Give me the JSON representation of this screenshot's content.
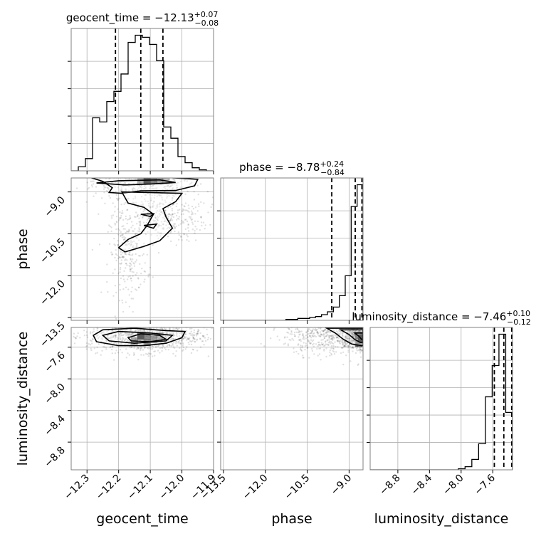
{
  "chart_data": {
    "type": "corner",
    "parameters": [
      "geocent_time",
      "phase",
      "luminosity_distance"
    ],
    "titles": [
      {
        "parameter": "geocent_time",
        "prefix": "geocent_time = ",
        "median": "−12.13",
        "plus": "+0.07",
        "minus": "−0.08"
      },
      {
        "parameter": "phase",
        "prefix": "phase = ",
        "median": "−8.78",
        "plus": "+0.24",
        "minus": "−0.84"
      },
      {
        "parameter": "luminosity_distance",
        "prefix": "luminosity_distance = ",
        "median": "−7.46",
        "plus": "+0.10",
        "minus": "−0.12"
      }
    ],
    "axis_labels": {
      "x": [
        "geocent_time",
        "phase",
        "luminosity_distance"
      ],
      "y": [
        "phase",
        "luminosity_distance"
      ]
    },
    "axis_ranges": {
      "geocent_time": [
        -12.35,
        -11.9
      ],
      "phase": [
        -13.6,
        -8.5
      ],
      "luminosity_distance": [
        -9.15,
        -7.35
      ]
    },
    "ticks": {
      "geocent_time": {
        "values": [
          -12.3,
          -12.2,
          -12.1,
          -12.0,
          -11.9
        ],
        "labels": [
          "−12.3",
          "−12.2",
          "−12.1",
          "−12.0",
          "−11.9"
        ]
      },
      "phase": {
        "values": [
          -13.5,
          -12.0,
          -10.5,
          -9.0
        ],
        "labels": [
          "−13.5",
          "−12.0",
          "−10.5",
          "−9.0"
        ]
      },
      "luminosity_distance": {
        "values": [
          -8.8,
          -8.4,
          -8.0,
          -7.6
        ],
        "labels": [
          "−8.8",
          "−8.4",
          "−8.0",
          "−7.6"
        ]
      }
    },
    "quantiles": {
      "geocent_time": [
        -12.21,
        -12.13,
        -12.06
      ],
      "phase": [
        -9.62,
        -8.78,
        -8.54
      ],
      "luminosity_distance": [
        -7.58,
        -7.46,
        -7.36
      ]
    },
    "histograms": {
      "geocent_time": {
        "edges_start": -12.35,
        "bin_width": 0.0225,
        "counts": [
          0,
          4,
          12,
          52,
          48,
          68,
          78,
          95,
          126,
          133,
          131,
          124,
          108,
          43,
          32,
          14,
          8,
          3,
          1,
          0
        ]
      },
      "phase": {
        "edges_start": -13.6,
        "bin_width": 0.2125,
        "counts": [
          0,
          0,
          0,
          0,
          0,
          0,
          0,
          0,
          0,
          0,
          0,
          1,
          1,
          2,
          2,
          3,
          4,
          6,
          9,
          14,
          26,
          47,
          120,
          143
        ]
      },
      "luminosity_distance": {
        "edges_start": -9.15,
        "bin_width": 0.0857,
        "counts": [
          0,
          0,
          0,
          0,
          0,
          0,
          0,
          0,
          0,
          0,
          0,
          0,
          0,
          1,
          3,
          10,
          25,
          70,
          100,
          130,
          55
        ]
      }
    },
    "scatter_clouds": [
      {
        "x": "geocent_time",
        "y": "phase",
        "center": [
          -12.12,
          -8.6
        ],
        "spread": [
          0.08,
          0.3
        ],
        "count": 520
      },
      {
        "x": "geocent_time",
        "y": "phase",
        "center": [
          -12.06,
          -9.9
        ],
        "spread": [
          0.07,
          0.45
        ],
        "count": 360
      },
      {
        "x": "geocent_time",
        "y": "phase",
        "center": [
          -12.17,
          -11.2
        ],
        "spread": [
          0.03,
          0.8
        ],
        "count": 260
      },
      {
        "x": "geocent_time",
        "y": "luminosity_distance",
        "center": [
          -12.12,
          -7.46
        ],
        "spread": [
          0.09,
          0.1
        ],
        "count": 1100
      },
      {
        "x": "phase",
        "y": "luminosity_distance",
        "center": [
          -9.3,
          -7.45
        ],
        "spread": [
          1.0,
          0.12
        ],
        "count": 800
      },
      {
        "x": "phase",
        "y": "luminosity_distance",
        "center": [
          -8.65,
          -7.45
        ],
        "spread": [
          0.25,
          0.08
        ],
        "count": 500
      }
    ],
    "density_cores": [
      {
        "x": "geocent_time",
        "y": "phase",
        "cells": [
          [
            -12.11,
            -8.6,
            1.0
          ],
          [
            -12.09,
            -8.6,
            0.75
          ],
          [
            -12.07,
            -8.6,
            0.55
          ],
          [
            -12.05,
            -8.6,
            0.35
          ],
          [
            -12.13,
            -8.6,
            0.4
          ]
        ]
      },
      {
        "x": "geocent_time",
        "y": "luminosity_distance",
        "cells": [
          [
            -12.13,
            -7.46,
            1.0
          ],
          [
            -12.11,
            -7.46,
            0.65
          ],
          [
            -12.09,
            -7.5,
            0.55
          ],
          [
            -12.11,
            -7.54,
            0.6
          ],
          [
            -12.15,
            -7.52,
            0.5
          ],
          [
            -12.07,
            -7.46,
            0.4
          ]
        ]
      },
      {
        "x": "phase",
        "y": "luminosity_distance",
        "cells": [
          [
            -8.55,
            -7.49,
            1.0
          ],
          [
            -8.65,
            -7.45,
            0.6
          ],
          [
            -8.65,
            -7.55,
            0.5
          ]
        ]
      }
    ],
    "contours": [
      {
        "x": "geocent_time",
        "y": "phase",
        "levels": [
          [
            [
              -12.3,
              -8.45
            ],
            [
              -12.25,
              -8.62
            ],
            [
              -12.22,
              -8.85
            ],
            [
              -12.23,
              -9.02
            ],
            [
              -12.19,
              -9.05
            ],
            [
              -12.13,
              -8.96
            ],
            [
              -12.02,
              -8.95
            ],
            [
              -11.96,
              -8.78
            ],
            [
              -11.95,
              -8.55
            ],
            [
              -12.05,
              -8.48
            ],
            [
              -12.3,
              -8.45
            ]
          ],
          [
            [
              -12.27,
              -8.68
            ],
            [
              -12.18,
              -8.75
            ],
            [
              -12.1,
              -8.72
            ],
            [
              -12.02,
              -8.66
            ],
            [
              -12.07,
              -8.57
            ],
            [
              -12.2,
              -8.6
            ],
            [
              -12.27,
              -8.68
            ]
          ]
        ]
      },
      {
        "x": "geocent_time",
        "y": "phase",
        "levels": [
          [
            [
              -12.19,
              -9.0
            ],
            [
              -12.17,
              -9.4
            ],
            [
              -12.12,
              -9.55
            ],
            [
              -12.09,
              -9.8
            ],
            [
              -12.11,
              -10.2
            ],
            [
              -12.13,
              -10.5
            ],
            [
              -12.17,
              -10.7
            ],
            [
              -12.2,
              -11.0
            ],
            [
              -12.18,
              -11.15
            ],
            [
              -12.12,
              -10.95
            ],
            [
              -12.07,
              -10.75
            ],
            [
              -12.03,
              -10.3
            ],
            [
              -12.05,
              -9.9
            ],
            [
              -12.06,
              -9.6
            ],
            [
              -12.02,
              -9.35
            ],
            [
              -12.0,
              -9.05
            ],
            [
              -12.19,
              -9.0
            ]
          ],
          [
            [
              -12.13,
              -9.8
            ],
            [
              -12.1,
              -9.88
            ],
            [
              -12.09,
              -9.78
            ],
            [
              -12.13,
              -9.8
            ]
          ],
          [
            [
              -12.12,
              -10.2
            ],
            [
              -12.09,
              -10.3
            ],
            [
              -12.08,
              -10.15
            ],
            [
              -12.12,
              -10.2
            ]
          ]
        ]
      },
      {
        "x": "geocent_time",
        "y": "luminosity_distance",
        "levels": [
          [
            [
              -12.28,
              -7.45
            ],
            [
              -12.25,
              -7.38
            ],
            [
              -12.15,
              -7.36
            ],
            [
              -12.05,
              -7.39
            ],
            [
              -11.99,
              -7.4
            ],
            [
              -12.0,
              -7.48
            ],
            [
              -12.05,
              -7.55
            ],
            [
              -12.12,
              -7.58
            ],
            [
              -12.2,
              -7.58
            ],
            [
              -12.27,
              -7.53
            ],
            [
              -12.28,
              -7.45
            ]
          ],
          [
            [
              -12.25,
              -7.45
            ],
            [
              -12.2,
              -7.4
            ],
            [
              -12.1,
              -7.42
            ],
            [
              -12.03,
              -7.45
            ],
            [
              -12.05,
              -7.52
            ],
            [
              -12.15,
              -7.55
            ],
            [
              -12.23,
              -7.52
            ],
            [
              -12.25,
              -7.45
            ]
          ],
          [
            [
              -12.17,
              -7.48
            ],
            [
              -12.13,
              -7.43
            ],
            [
              -12.07,
              -7.45
            ],
            [
              -12.05,
              -7.5
            ],
            [
              -12.1,
              -7.53
            ],
            [
              -12.16,
              -7.52
            ],
            [
              -12.17,
              -7.48
            ]
          ]
        ]
      },
      {
        "x": "phase",
        "y": "luminosity_distance",
        "levels": [
          [
            [
              -9.8,
              -7.36
            ],
            [
              -9.5,
              -7.42
            ],
            [
              -9.2,
              -7.5
            ],
            [
              -8.9,
              -7.56
            ],
            [
              -8.55,
              -7.58
            ],
            [
              -8.5,
              -7.58
            ],
            [
              -8.5,
              -7.36
            ],
            [
              -9.8,
              -7.36
            ]
          ],
          [
            [
              -9.3,
              -7.38
            ],
            [
              -9.0,
              -7.44
            ],
            [
              -8.8,
              -7.5
            ],
            [
              -8.6,
              -7.54
            ],
            [
              -8.5,
              -7.54
            ],
            [
              -8.5,
              -7.38
            ],
            [
              -9.3,
              -7.38
            ]
          ],
          [
            [
              -8.8,
              -7.42
            ],
            [
              -8.65,
              -7.46
            ],
            [
              -8.55,
              -7.5
            ],
            [
              -8.5,
              -7.5
            ],
            [
              -8.5,
              -7.42
            ],
            [
              -8.8,
              -7.42
            ]
          ]
        ]
      }
    ],
    "grid": true,
    "colors": {
      "line": "#000000",
      "grid": "#b0b0b0",
      "points": "#000000",
      "frame": "#808080"
    }
  }
}
